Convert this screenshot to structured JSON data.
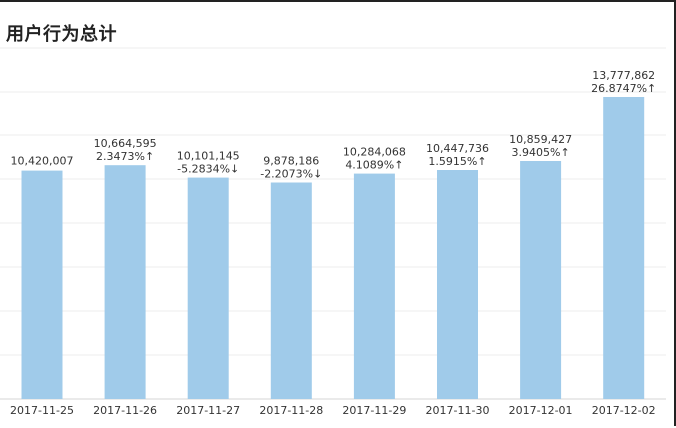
{
  "chart_data": {
    "type": "bar",
    "title": "用户行为总计",
    "xlabel": "",
    "ylabel": "",
    "categories": [
      "2017-11-25",
      "2017-11-26",
      "2017-11-27",
      "2017-11-28",
      "2017-11-29",
      "2017-11-30",
      "2017-12-01",
      "2017-12-02"
    ],
    "values": [
      10420007,
      10664595,
      10101145,
      9878186,
      10284068,
      10447736,
      10859427,
      13777862
    ],
    "value_labels": [
      "10,420,007",
      "10,664,595",
      "10,101,145",
      "9,878,186",
      "10,284,068",
      "10,447,736",
      "10,859,427",
      "13,777,862"
    ],
    "change_labels": [
      "",
      "2.3473%↑",
      "-5.2834%↓",
      "-2.2073%↓",
      "4.1089%↑",
      "1.5915%↑",
      "3.9405%↑",
      "26.8747%↑"
    ],
    "ylim": [
      0,
      14000000
    ],
    "grid": true,
    "bar_color": "#a0cbea",
    "grid_color": "#ececec"
  }
}
